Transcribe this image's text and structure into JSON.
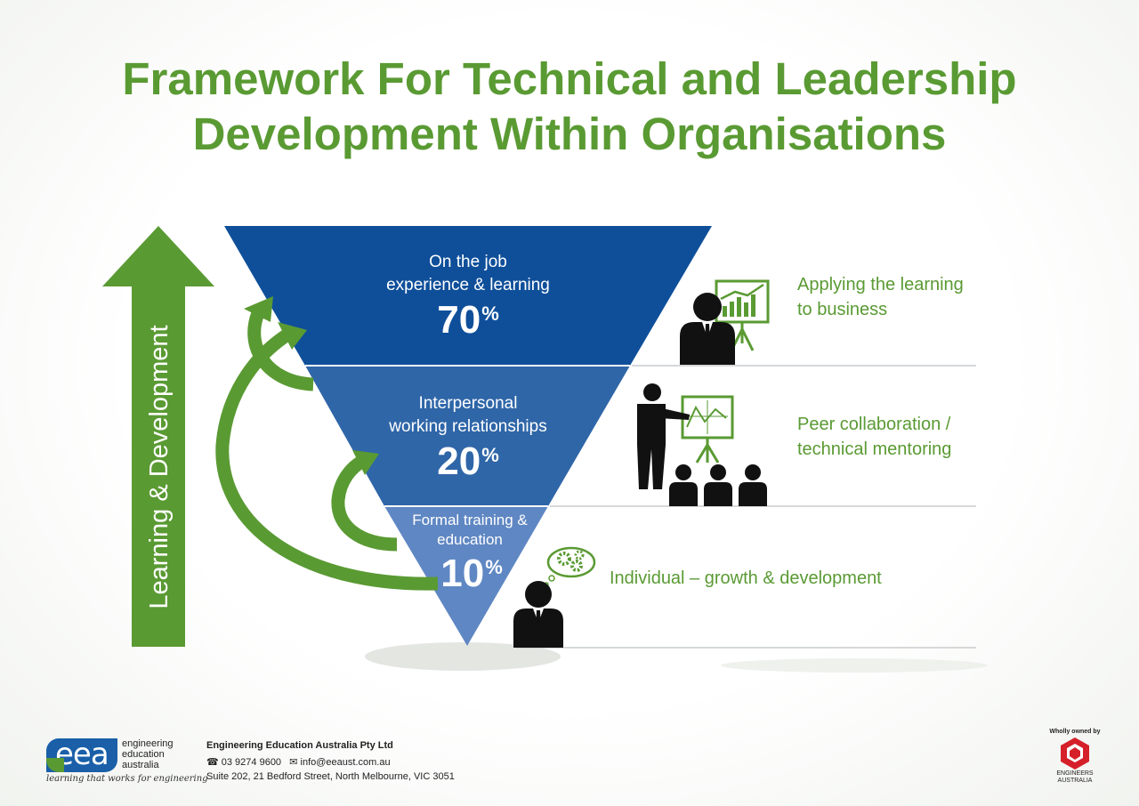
{
  "title": {
    "line1": "Framework For Technical and Leadership",
    "line2": "Development Within Organisations"
  },
  "arrow_label": "Learning & Development",
  "tiers": [
    {
      "label_line1": "On the job",
      "label_line2": "experience & learning",
      "percent": "70",
      "percent_sign": "%",
      "color": "#0f4f9a",
      "description_line1": "Applying the learning",
      "description_line2": "to business",
      "icon": "presenter-with-chart-icon"
    },
    {
      "label_line1": "Interpersonal",
      "label_line2": "working relationships",
      "percent": "20",
      "percent_sign": "%",
      "color": "#2f66a8",
      "description_line1": "Peer collaboration /",
      "description_line2": "technical mentoring",
      "icon": "presenter-with-audience-icon"
    },
    {
      "label_line1": "Formal training &",
      "label_line2": "education",
      "percent": "10",
      "percent_sign": "%",
      "color": "#5f87c3",
      "description_line1": "Individual – growth & development",
      "description_line2": "",
      "icon": "thinking-person-gears-icon"
    }
  ],
  "colors": {
    "green": "#5a9a33",
    "dark_blue": "#0f4f9a",
    "mid_blue": "#2f66a8",
    "light_blue": "#5f87c3"
  },
  "footer": {
    "logo_word": "eea",
    "logo_name_line1": "engineering",
    "logo_name_line2": "education",
    "logo_name_line3": "australia",
    "tagline": "learning that works for engineering",
    "company": "Engineering Education Australia Pty Ltd",
    "phone": "03 9274 9600",
    "email": "info@eeaust.com.au",
    "address": "Suite 202, 21 Bedford Street, North Melbourne, VIC 3051",
    "owned_by": "Wholly owned by",
    "partner_line1": "ENGINEERS",
    "partner_line2": "AUSTRALIA"
  }
}
